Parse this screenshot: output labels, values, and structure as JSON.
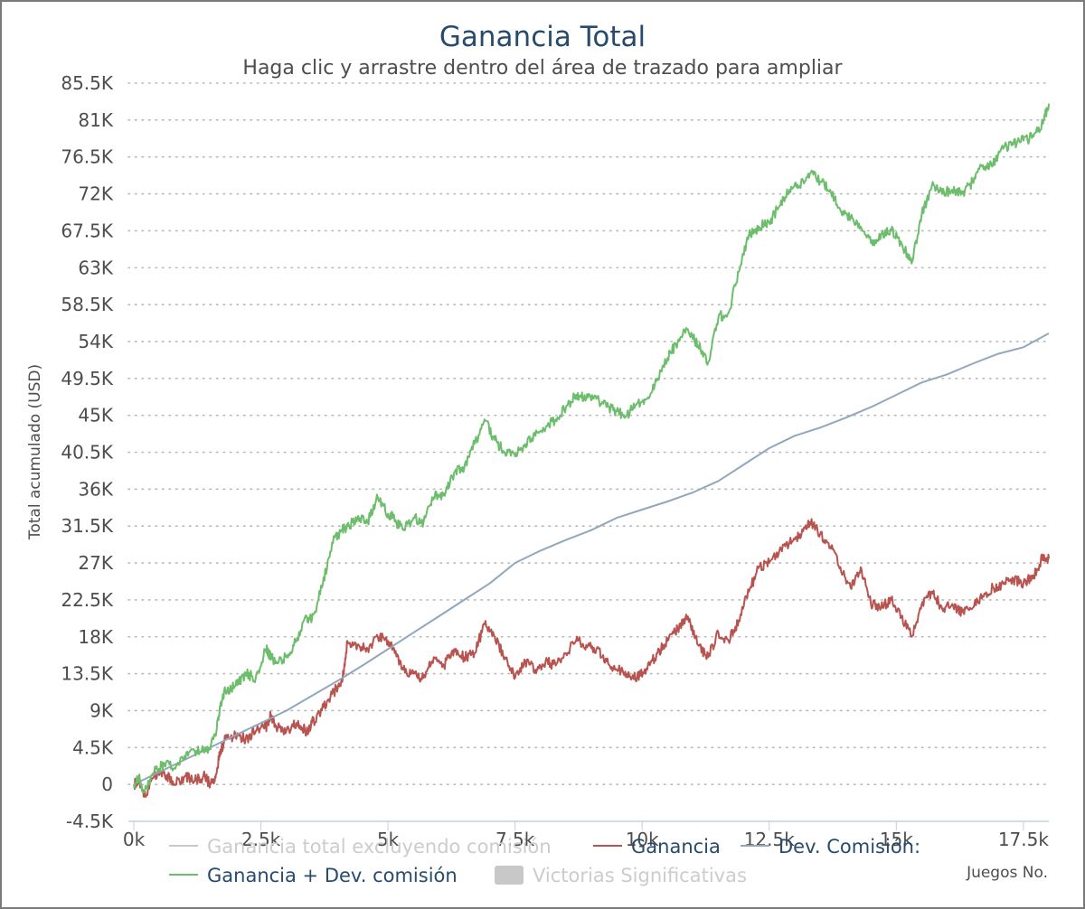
{
  "chart_data": {
    "type": "line",
    "title": "Ganancia Total",
    "subtitle": "Haga clic y arrastre dentro del área de trazado para ampliar",
    "ylabel": "Total acumulado (USD)",
    "xlabel": "Juegos No.",
    "xlim": [
      0,
      18000
    ],
    "ylim": [
      -4500,
      85500
    ],
    "yticks": [
      -4500,
      0,
      4500,
      9000,
      13500,
      18000,
      22500,
      27000,
      31500,
      36000,
      40500,
      45000,
      49500,
      54000,
      58500,
      63000,
      67500,
      72000,
      76500,
      81000,
      85500
    ],
    "ytick_labels": [
      "-4.5K",
      "0",
      "4.5K",
      "9K",
      "13.5K",
      "18K",
      "22.5K",
      "27K",
      "31.5K",
      "36K",
      "40.5K",
      "45K",
      "49.5K",
      "54K",
      "58.5K",
      "63K",
      "67.5K",
      "72K",
      "76.5K",
      "81K",
      "85.5K"
    ],
    "xticks": [
      0,
      2500,
      5000,
      7500,
      10000,
      12500,
      15000,
      17500
    ],
    "xtick_labels": [
      "0k",
      "2.5k",
      "5k",
      "7.5k",
      "10k",
      "12.5k",
      "15k",
      "17.5k"
    ],
    "grid": true,
    "legend_position": "bottom",
    "series": [
      {
        "name": "Ganancia total excluyendo comisión",
        "color": "#c8c8c8",
        "visible": false,
        "x": [],
        "y": []
      },
      {
        "name": "Ganancia",
        "color": "#b85450",
        "visible": true,
        "x": [
          0,
          100,
          200,
          400,
          600,
          800,
          1000,
          1200,
          1400,
          1500,
          1600,
          1700,
          1800,
          2000,
          2200,
          2400,
          2600,
          2700,
          2800,
          3000,
          3200,
          3400,
          3500,
          3700,
          3900,
          4100,
          4200,
          4400,
          4600,
          4800,
          5000,
          5100,
          5300,
          5500,
          5700,
          5900,
          6100,
          6300,
          6500,
          6700,
          6900,
          7100,
          7300,
          7500,
          7700,
          7900,
          8100,
          8300,
          8500,
          8700,
          8900,
          9100,
          9300,
          9500,
          9700,
          9900,
          10100,
          10300,
          10500,
          10700,
          10900,
          11100,
          11300,
          11500,
          11700,
          11900,
          12100,
          12300,
          12500,
          12700,
          12900,
          13100,
          13300,
          13500,
          13700,
          13900,
          14100,
          14300,
          14500,
          14700,
          14900,
          15100,
          15300,
          15500,
          15700,
          15900,
          16100,
          16300,
          16500,
          16700,
          16900,
          17100,
          17300,
          17500,
          17700,
          17900,
          18000
        ],
        "y": [
          0,
          500,
          -1500,
          1000,
          1500,
          0,
          1000,
          500,
          1000,
          0,
          1000,
          4000,
          5500,
          6000,
          5500,
          6500,
          7000,
          8500,
          7000,
          6500,
          7500,
          6500,
          7500,
          9000,
          11000,
          12500,
          17500,
          17000,
          16500,
          18000,
          17500,
          16500,
          14000,
          13500,
          13000,
          15500,
          14500,
          16500,
          15500,
          16000,
          19500,
          18000,
          15500,
          13000,
          15000,
          14000,
          15000,
          14500,
          16000,
          17500,
          17000,
          16500,
          15000,
          14000,
          13500,
          13000,
          14000,
          16000,
          17500,
          19000,
          20500,
          17000,
          15500,
          18500,
          17500,
          20000,
          23500,
          26500,
          27000,
          28500,
          29500,
          30500,
          32000,
          30500,
          29000,
          26500,
          24000,
          26500,
          22000,
          21500,
          22500,
          20500,
          18000,
          22000,
          23500,
          21500,
          22000,
          21000,
          21500,
          23000,
          24000,
          24500,
          25000,
          24500,
          25500,
          28000,
          27500
        ]
      },
      {
        "name": "Dev. Comisión:",
        "color": "#91a7be",
        "visible": true,
        "x": [
          0,
          500,
          1000,
          1500,
          2000,
          2500,
          3000,
          3500,
          4000,
          4500,
          5000,
          5500,
          6000,
          6500,
          7000,
          7500,
          8000,
          8500,
          9000,
          9500,
          10000,
          10500,
          11000,
          11500,
          12000,
          12500,
          13000,
          13500,
          14000,
          14500,
          15000,
          15500,
          16000,
          16500,
          17000,
          17500,
          18000
        ],
        "y": [
          0,
          1500,
          3000,
          4500,
          6000,
          7500,
          9000,
          10800,
          12600,
          14500,
          16500,
          18500,
          20500,
          22500,
          24500,
          27000,
          28500,
          29800,
          31000,
          32500,
          33500,
          34500,
          35600,
          37000,
          39000,
          41000,
          42500,
          43500,
          44700,
          46000,
          47500,
          49000,
          50000,
          51300,
          52500,
          53300,
          55000
        ]
      },
      {
        "name": "Ganancia + Dev. comisión",
        "color": "#6cbd6c",
        "visible": true,
        "x": [
          0,
          100,
          200,
          400,
          600,
          800,
          1000,
          1200,
          1400,
          1500,
          1600,
          1700,
          1800,
          2000,
          2200,
          2400,
          2600,
          2700,
          2800,
          3000,
          3200,
          3400,
          3500,
          3700,
          3900,
          4100,
          4200,
          4400,
          4600,
          4800,
          5000,
          5100,
          5300,
          5500,
          5700,
          5900,
          6100,
          6300,
          6500,
          6700,
          6900,
          7100,
          7300,
          7500,
          7700,
          7900,
          8100,
          8300,
          8500,
          8700,
          8900,
          9100,
          9300,
          9500,
          9700,
          9900,
          10100,
          10300,
          10500,
          10700,
          10900,
          11100,
          11300,
          11500,
          11700,
          11900,
          12100,
          12300,
          12500,
          12700,
          12900,
          13100,
          13300,
          13500,
          13700,
          13900,
          14100,
          14300,
          14500,
          14700,
          14900,
          15100,
          15300,
          15500,
          15700,
          15900,
          16100,
          16300,
          16500,
          16700,
          16900,
          17100,
          17300,
          17500,
          17700,
          17900,
          18000
        ],
        "y": [
          0,
          800,
          -1000,
          1500,
          2500,
          2000,
          3500,
          4000,
          4500,
          4500,
          6000,
          9500,
          11500,
          12000,
          13500,
          13000,
          16500,
          15500,
          15000,
          15500,
          17500,
          20500,
          20000,
          24000,
          29500,
          31000,
          31500,
          32500,
          32000,
          35000,
          33000,
          32500,
          31000,
          32500,
          32000,
          35000,
          35500,
          38000,
          38500,
          41500,
          44500,
          42000,
          40500,
          40000,
          41500,
          42500,
          43500,
          44500,
          46000,
          47500,
          47000,
          47000,
          46000,
          45500,
          45000,
          46500,
          47000,
          49500,
          52000,
          54000,
          55500,
          53500,
          51500,
          57000,
          57500,
          62500,
          67000,
          68000,
          68500,
          70500,
          72500,
          73000,
          74500,
          73500,
          72500,
          70000,
          69000,
          68000,
          66000,
          67000,
          67500,
          66000,
          63500,
          69500,
          73000,
          72000,
          72500,
          72000,
          73500,
          75500,
          75500,
          77500,
          78000,
          78500,
          79000,
          81000,
          83000
        ]
      },
      {
        "name": "Victorias Significativas",
        "color": "#c8c8c8",
        "visible": false,
        "x": [],
        "y": []
      }
    ]
  }
}
